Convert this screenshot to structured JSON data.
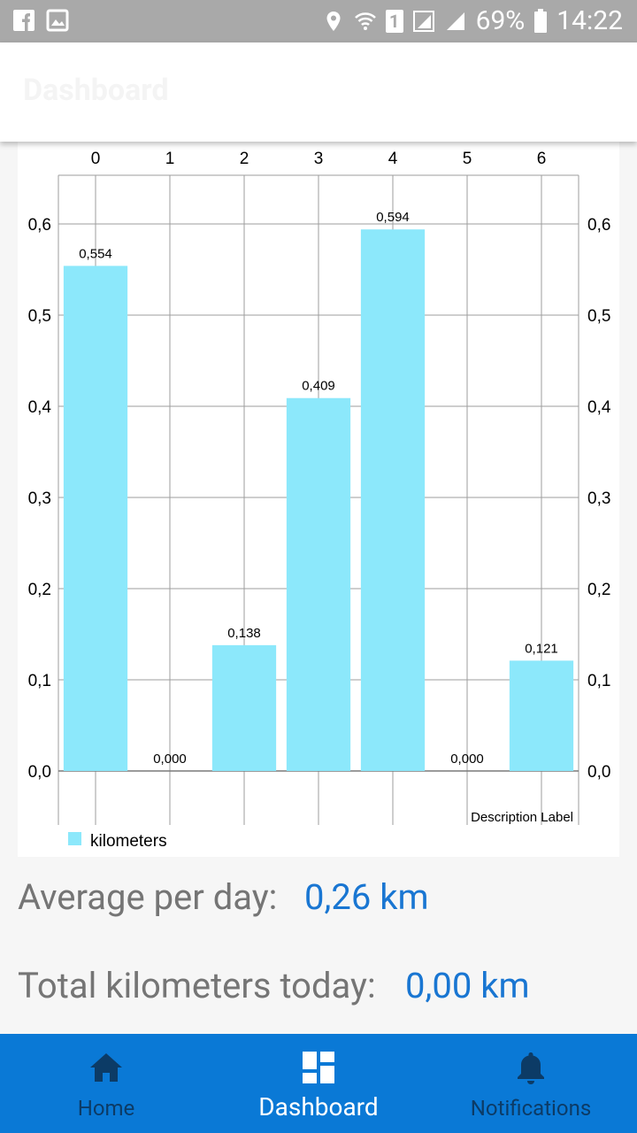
{
  "status_bar": {
    "battery": "69%",
    "time": "14:22",
    "sim_slot": "1"
  },
  "app_bar": {
    "title": "Dashboard"
  },
  "chart_data": {
    "type": "bar",
    "categories": [
      "0",
      "1",
      "2",
      "3",
      "4",
      "5",
      "6"
    ],
    "values": [
      0.554,
      0.0,
      0.138,
      0.409,
      0.594,
      0.0,
      0.121
    ],
    "value_labels": [
      "0,554",
      "0,000",
      "0,138",
      "0,409",
      "0,594",
      "0,000",
      "0,121"
    ],
    "series": [
      {
        "name": "kilometers",
        "values": [
          0.554,
          0.0,
          0.138,
          0.409,
          0.594,
          0.0,
          0.121
        ]
      }
    ],
    "y_ticks": [
      "0,0",
      "0,1",
      "0,2",
      "0,3",
      "0,4",
      "0,5",
      "0,6"
    ],
    "ylim": [
      0,
      0.6
    ],
    "description": "Description Label",
    "legend": "bottom-left",
    "grid": true,
    "bar_color": "#8ce8fb"
  },
  "stats": {
    "average_label": "Average per day:",
    "average_value": "0,26 km",
    "total_label": "Total kilometers today:",
    "total_value": "0,00 km"
  },
  "bottom_nav": {
    "items": [
      {
        "label": "Home",
        "icon": "home-icon"
      },
      {
        "label": "Dashboard",
        "icon": "dashboard-icon",
        "active": true
      },
      {
        "label": "Notifications",
        "icon": "bell-icon"
      }
    ]
  },
  "colors": {
    "accent": "#0a79d6",
    "value_text": "#1976d2",
    "inactive_nav": "#0c3b66"
  }
}
